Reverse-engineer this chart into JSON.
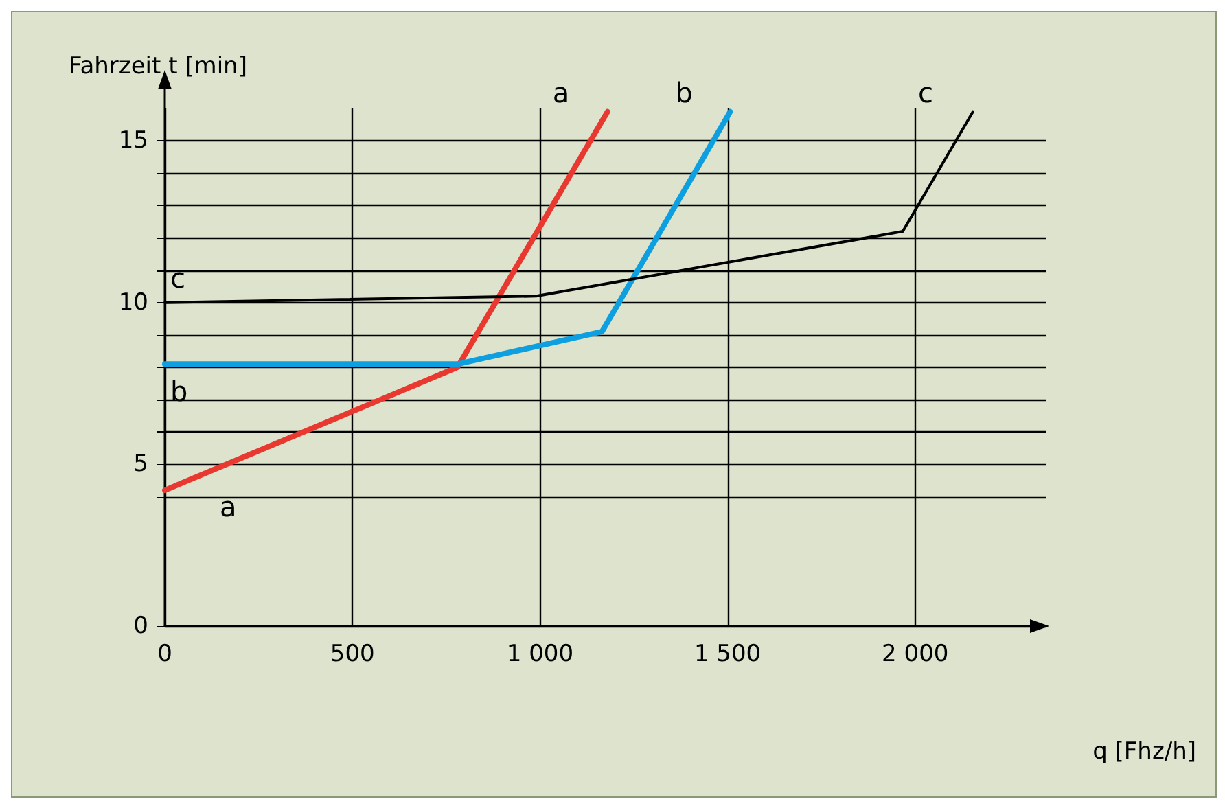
{
  "chart_data": {
    "type": "line",
    "xlabel": "q [Fhz/h]",
    "ylabel": "Fahrzeit t [min]",
    "xlim": [
      0,
      2350
    ],
    "ylim": [
      0,
      16
    ],
    "xticks": [
      0,
      500,
      {
        "value": 1000,
        "label": "1 000"
      },
      {
        "value": 1500,
        "label": "1 500"
      },
      {
        "value": 2000,
        "label": "2 000"
      }
    ],
    "yticks": [
      0,
      {
        "value": 4,
        "label": null
      },
      5,
      {
        "value": 6,
        "label": null
      },
      {
        "value": 7,
        "label": null
      },
      {
        "value": 8,
        "label": null
      },
      {
        "value": 9,
        "label": null
      },
      10,
      {
        "value": 11,
        "label": null
      },
      {
        "value": 12,
        "label": null
      },
      {
        "value": 13,
        "label": null
      },
      {
        "value": 14,
        "label": null
      },
      15
    ],
    "grid": true,
    "legend": false,
    "marker": "none",
    "line_style": "solid",
    "series": [
      {
        "name": "a",
        "color": "#e8382f",
        "x": [
          0,
          780,
          1180
        ],
        "values": [
          4.2,
          8,
          15.9
        ]
      },
      {
        "name": "b",
        "color": "#0e9fe0",
        "x": [
          0,
          780,
          1165,
          1507
        ],
        "values": [
          8.1,
          8.1,
          9.1,
          15.9
        ]
      },
      {
        "name": "c",
        "color": "#000000",
        "x": [
          0,
          990,
          1967,
          2154
        ],
        "values": [
          10,
          10.2,
          12.2,
          15.9
        ]
      }
    ]
  }
}
